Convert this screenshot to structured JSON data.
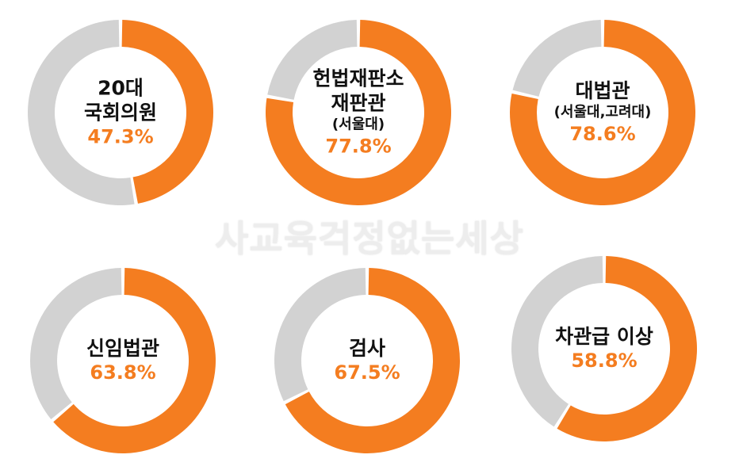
{
  "watermark": "사교육걱정없는세상",
  "colors": {
    "share": "#f47d20",
    "rest": "#d2d2d2",
    "gap": "#ffffff",
    "label": "#111111"
  },
  "chart_data": {
    "type": "pie",
    "variant": "donut",
    "items": [
      {
        "label_lines": [
          "20대",
          "국회의원"
        ],
        "value": 47.3,
        "value_label": "47.3%"
      },
      {
        "label_lines": [
          "헌법재판소",
          "재판관"
        ],
        "sub_label": "(서울대)",
        "value": 77.8,
        "value_label": "77.8%"
      },
      {
        "label_lines": [
          "대법관"
        ],
        "sub_label": "(서울대,고려대)",
        "value": 78.6,
        "value_label": "78.6%"
      },
      {
        "label_lines": [
          "신임법관"
        ],
        "value": 63.8,
        "value_label": "63.8%"
      },
      {
        "label_lines": [
          "검사"
        ],
        "value": 67.5,
        "value_label": "67.5%"
      },
      {
        "label_lines": [
          "차관급 이상"
        ],
        "value": 58.8,
        "value_label": "58.8%"
      }
    ]
  }
}
